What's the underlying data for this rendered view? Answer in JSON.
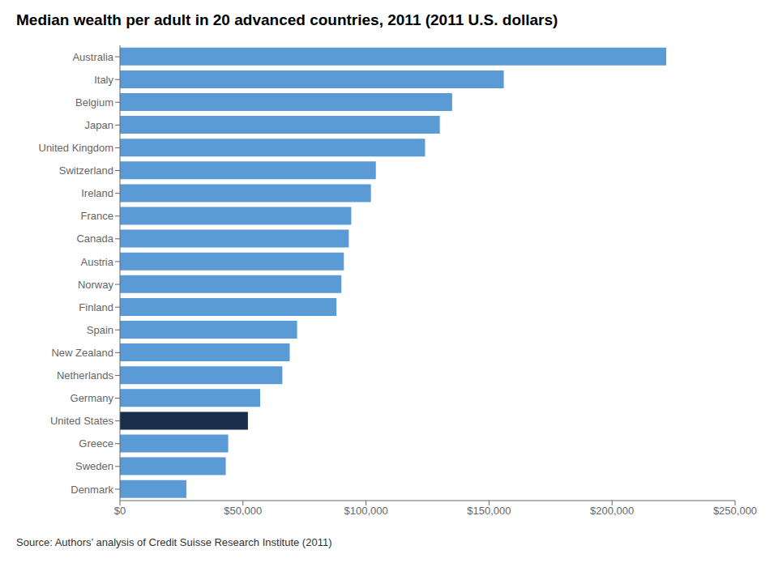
{
  "chart_data": {
    "type": "bar",
    "orientation": "horizontal",
    "title": "Median wealth per adult in 20 advanced countries, 2011 (2011 U.S. dollars)",
    "annotations": [
      "Source: Authors’ analysis of Credit Suisse Research Institute (2011)"
    ],
    "categories": [
      "Australia",
      "Italy",
      "Belgium",
      "Japan",
      "United Kingdom",
      "Switzerland",
      "Ireland",
      "France",
      "Canada",
      "Austria",
      "Norway",
      "Finland",
      "Spain",
      "New Zealand",
      "Netherlands",
      "Germany",
      "United States",
      "Greece",
      "Sweden",
      "Denmark"
    ],
    "values": [
      222000,
      156000,
      135000,
      130000,
      124000,
      104000,
      102000,
      94000,
      93000,
      91000,
      90000,
      88000,
      72000,
      69000,
      66000,
      57000,
      52000,
      44000,
      43000,
      27000
    ],
    "colors": [
      "#5b9bd5",
      "#5b9bd5",
      "#5b9bd5",
      "#5b9bd5",
      "#5b9bd5",
      "#5b9bd5",
      "#5b9bd5",
      "#5b9bd5",
      "#5b9bd5",
      "#5b9bd5",
      "#5b9bd5",
      "#5b9bd5",
      "#5b9bd5",
      "#5b9bd5",
      "#5b9bd5",
      "#5b9bd5",
      "#1a2e4a",
      "#5b9bd5",
      "#5b9bd5",
      "#5b9bd5"
    ],
    "xlim": [
      0,
      250000
    ],
    "xticks": [
      {
        "value": 0,
        "label": "$0"
      },
      {
        "value": 50000,
        "label": "$50,000"
      },
      {
        "value": 100000,
        "label": "$100,000"
      },
      {
        "value": 150000,
        "label": "$150,000"
      },
      {
        "value": 200000,
        "label": "$200,000"
      },
      {
        "value": 250000,
        "label": "$250,000"
      }
    ],
    "grid": false
  }
}
